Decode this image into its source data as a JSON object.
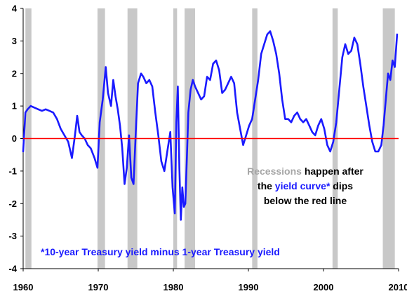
{
  "chart_data": {
    "type": "line",
    "title": "",
    "xlabel": "",
    "ylabel": "",
    "xlim": [
      1960,
      2010
    ],
    "ylim": [
      -4,
      4
    ],
    "x_ticks": [
      "1960",
      "1970",
      "1980",
      "1990",
      "2000",
      "2010"
    ],
    "y_ticks": [
      "4",
      "3",
      "2",
      "1",
      "0",
      "-1",
      "-2",
      "-3",
      "-4"
    ],
    "grid": false,
    "reference_line": {
      "y": 0,
      "color": "#ff0000"
    },
    "recessions": [
      [
        1960.3,
        1961.1
      ],
      [
        1969.9,
        1970.9
      ],
      [
        1973.9,
        1975.2
      ],
      [
        1980.0,
        1980.5
      ],
      [
        1981.5,
        1982.9
      ],
      [
        1990.5,
        1991.2
      ],
      [
        2001.2,
        2001.9
      ],
      [
        2007.9,
        2009.5
      ]
    ],
    "recession_color": "#c8c8c8",
    "series": [
      {
        "color": "#1a1aff",
        "x": [
          1960.0,
          1960.3,
          1960.6,
          1961.0,
          1961.5,
          1962.0,
          1962.5,
          1963.0,
          1963.5,
          1964.0,
          1964.5,
          1965.0,
          1965.5,
          1966.0,
          1966.5,
          1966.9,
          1967.2,
          1967.5,
          1967.8,
          1968.2,
          1968.6,
          1969.0,
          1969.5,
          1969.9,
          1970.2,
          1970.6,
          1971.0,
          1971.3,
          1971.7,
          1972.0,
          1972.3,
          1972.6,
          1972.9,
          1973.2,
          1973.5,
          1973.8,
          1974.1,
          1974.4,
          1974.7,
          1975.0,
          1975.3,
          1975.7,
          1976.0,
          1976.4,
          1976.8,
          1977.2,
          1977.6,
          1978.0,
          1978.4,
          1978.8,
          1979.2,
          1979.6,
          1979.9,
          1980.2,
          1980.4,
          1980.6,
          1980.8,
          1981.0,
          1981.2,
          1981.4,
          1981.6,
          1981.8,
          1982.0,
          1982.3,
          1982.6,
          1982.9,
          1983.3,
          1983.7,
          1984.1,
          1984.5,
          1984.9,
          1985.3,
          1985.7,
          1986.1,
          1986.5,
          1986.9,
          1987.3,
          1987.7,
          1988.1,
          1988.5,
          1988.9,
          1989.3,
          1989.7,
          1990.1,
          1990.5,
          1990.9,
          1991.3,
          1991.7,
          1992.1,
          1992.5,
          1992.9,
          1993.3,
          1993.7,
          1994.1,
          1994.5,
          1994.9,
          1995.3,
          1995.7,
          1996.1,
          1996.5,
          1996.9,
          1997.3,
          1997.7,
          1998.1,
          1998.5,
          1998.9,
          1999.3,
          1999.7,
          2000.1,
          2000.5,
          2000.9,
          2001.3,
          2001.7,
          2002.1,
          2002.5,
          2002.9,
          2003.3,
          2003.7,
          2004.1,
          2004.5,
          2004.9,
          2005.3,
          2005.7,
          2006.1,
          2006.5,
          2006.9,
          2007.3,
          2007.7,
          2008.0,
          2008.3,
          2008.6,
          2008.9,
          2009.2,
          2009.5,
          2009.8
        ],
        "values": [
          -0.4,
          0.8,
          0.9,
          1.0,
          0.95,
          0.9,
          0.85,
          0.9,
          0.85,
          0.8,
          0.6,
          0.3,
          0.1,
          -0.1,
          -0.6,
          0.1,
          0.7,
          0.2,
          0.1,
          0.0,
          -0.2,
          -0.3,
          -0.6,
          -0.9,
          0.5,
          1.2,
          2.2,
          1.4,
          1.0,
          1.8,
          1.3,
          0.9,
          0.4,
          -0.3,
          -1.4,
          -0.9,
          0.1,
          -1.2,
          -1.4,
          0.2,
          1.7,
          2.0,
          1.9,
          1.7,
          1.8,
          1.6,
          0.8,
          0.1,
          -0.7,
          -1.0,
          -0.4,
          0.2,
          -1.5,
          -2.3,
          0.5,
          1.6,
          -0.9,
          -2.5,
          -1.5,
          -2.1,
          -2.0,
          -0.6,
          0.8,
          1.5,
          1.8,
          1.6,
          1.4,
          1.2,
          1.3,
          1.9,
          1.8,
          2.3,
          2.4,
          2.1,
          1.4,
          1.5,
          1.7,
          1.9,
          1.7,
          0.8,
          0.3,
          -0.2,
          0.1,
          0.4,
          0.6,
          1.2,
          1.8,
          2.6,
          2.9,
          3.2,
          3.3,
          3.0,
          2.6,
          2.0,
          1.2,
          0.6,
          0.6,
          0.5,
          0.7,
          0.8,
          0.6,
          0.5,
          0.6,
          0.4,
          0.2,
          0.1,
          0.4,
          0.6,
          0.3,
          -0.2,
          -0.4,
          -0.1,
          0.5,
          1.5,
          2.5,
          2.9,
          2.6,
          2.7,
          3.1,
          2.9,
          2.3,
          1.6,
          1.0,
          0.4,
          -0.1,
          -0.4,
          -0.4,
          -0.2,
          0.4,
          1.2,
          2.0,
          1.8,
          2.4,
          2.2,
          3.2
        ]
      }
    ],
    "annotation": {
      "line1_a": "Recessions",
      "line1_b": " happen after",
      "line2_a": "the ",
      "line2_b": "yield curve*",
      "line2_c": " dips",
      "line3": "below the red line"
    },
    "footnote": "*10-year Treasury yield minus 1-year Treasury yield",
    "colors": {
      "annotation_gray": "#a6a6a6",
      "annotation_text": "#000000",
      "series_blue": "#1a1aff"
    }
  }
}
